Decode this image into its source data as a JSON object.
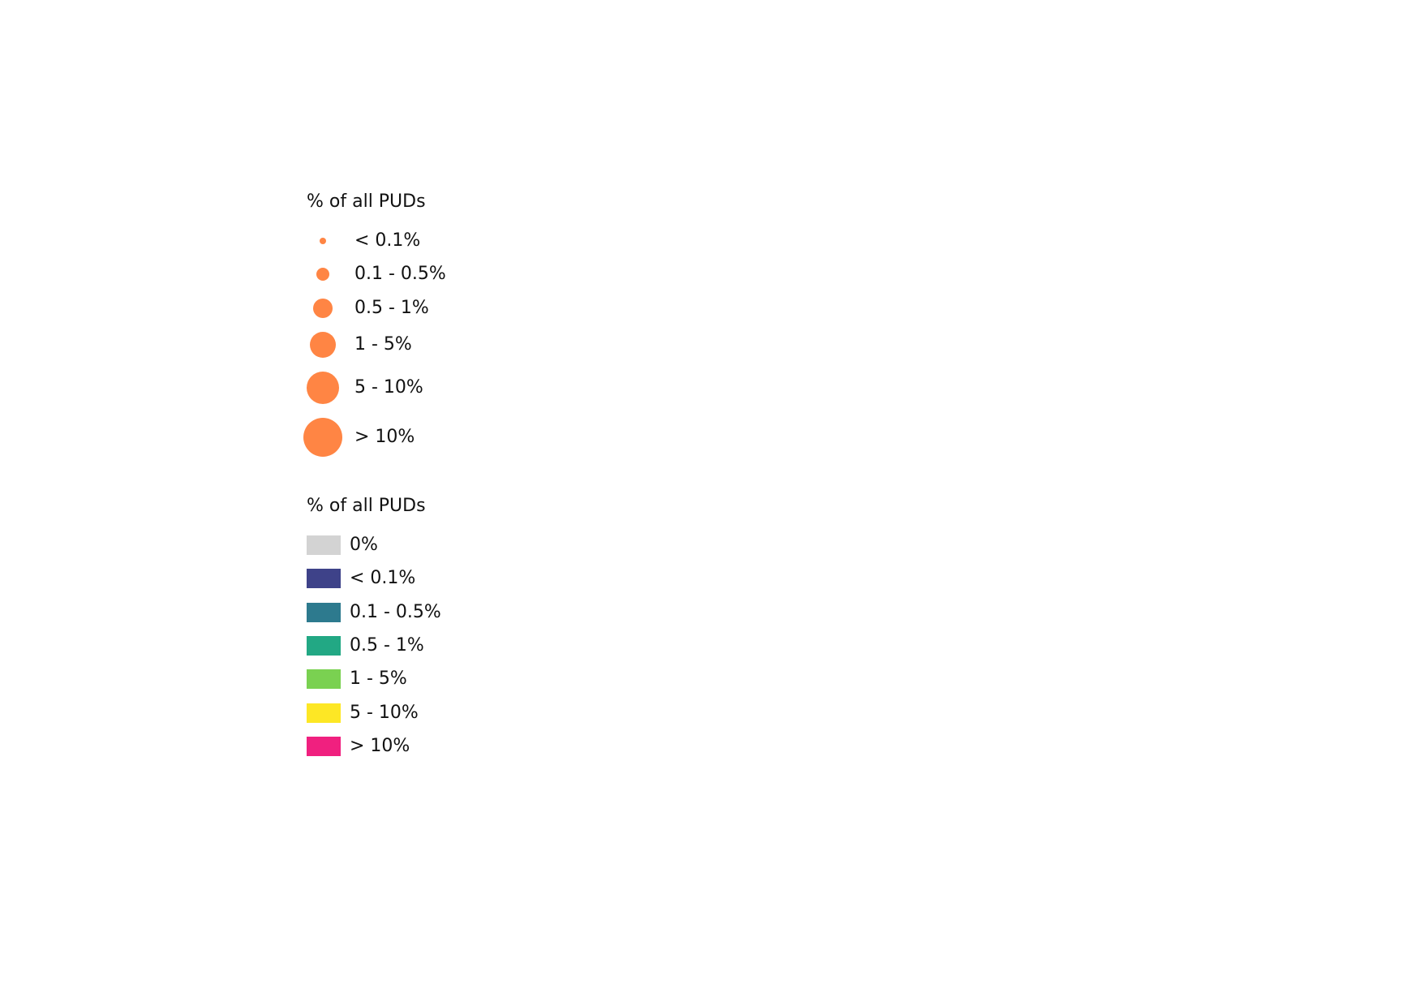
{
  "size_legend": {
    "title": "% of all PUDs",
    "color": "#FF8544",
    "items": [
      {
        "label": "< 0.1%"
      },
      {
        "label": "0.1 - 0.5%"
      },
      {
        "label": "0.5 - 1%"
      },
      {
        "label": "1 - 5%"
      },
      {
        "label": "5 - 10%"
      },
      {
        "label": "> 10%"
      }
    ]
  },
  "color_legend": {
    "title": "% of all PUDs",
    "items": [
      {
        "label": "0%",
        "color": "#D3D3D3"
      },
      {
        "label": "< 0.1%",
        "color": "#3E4289"
      },
      {
        "label": "0.1 - 0.5%",
        "color": "#2D7A8E"
      },
      {
        "label": "0.5 - 1%",
        "color": "#22A884"
      },
      {
        "label": "1 - 5%",
        "color": "#7AD151"
      },
      {
        "label": "5 - 10%",
        "color": "#FDE725"
      },
      {
        "label": "> 10%",
        "color": "#F0207F"
      }
    ]
  }
}
